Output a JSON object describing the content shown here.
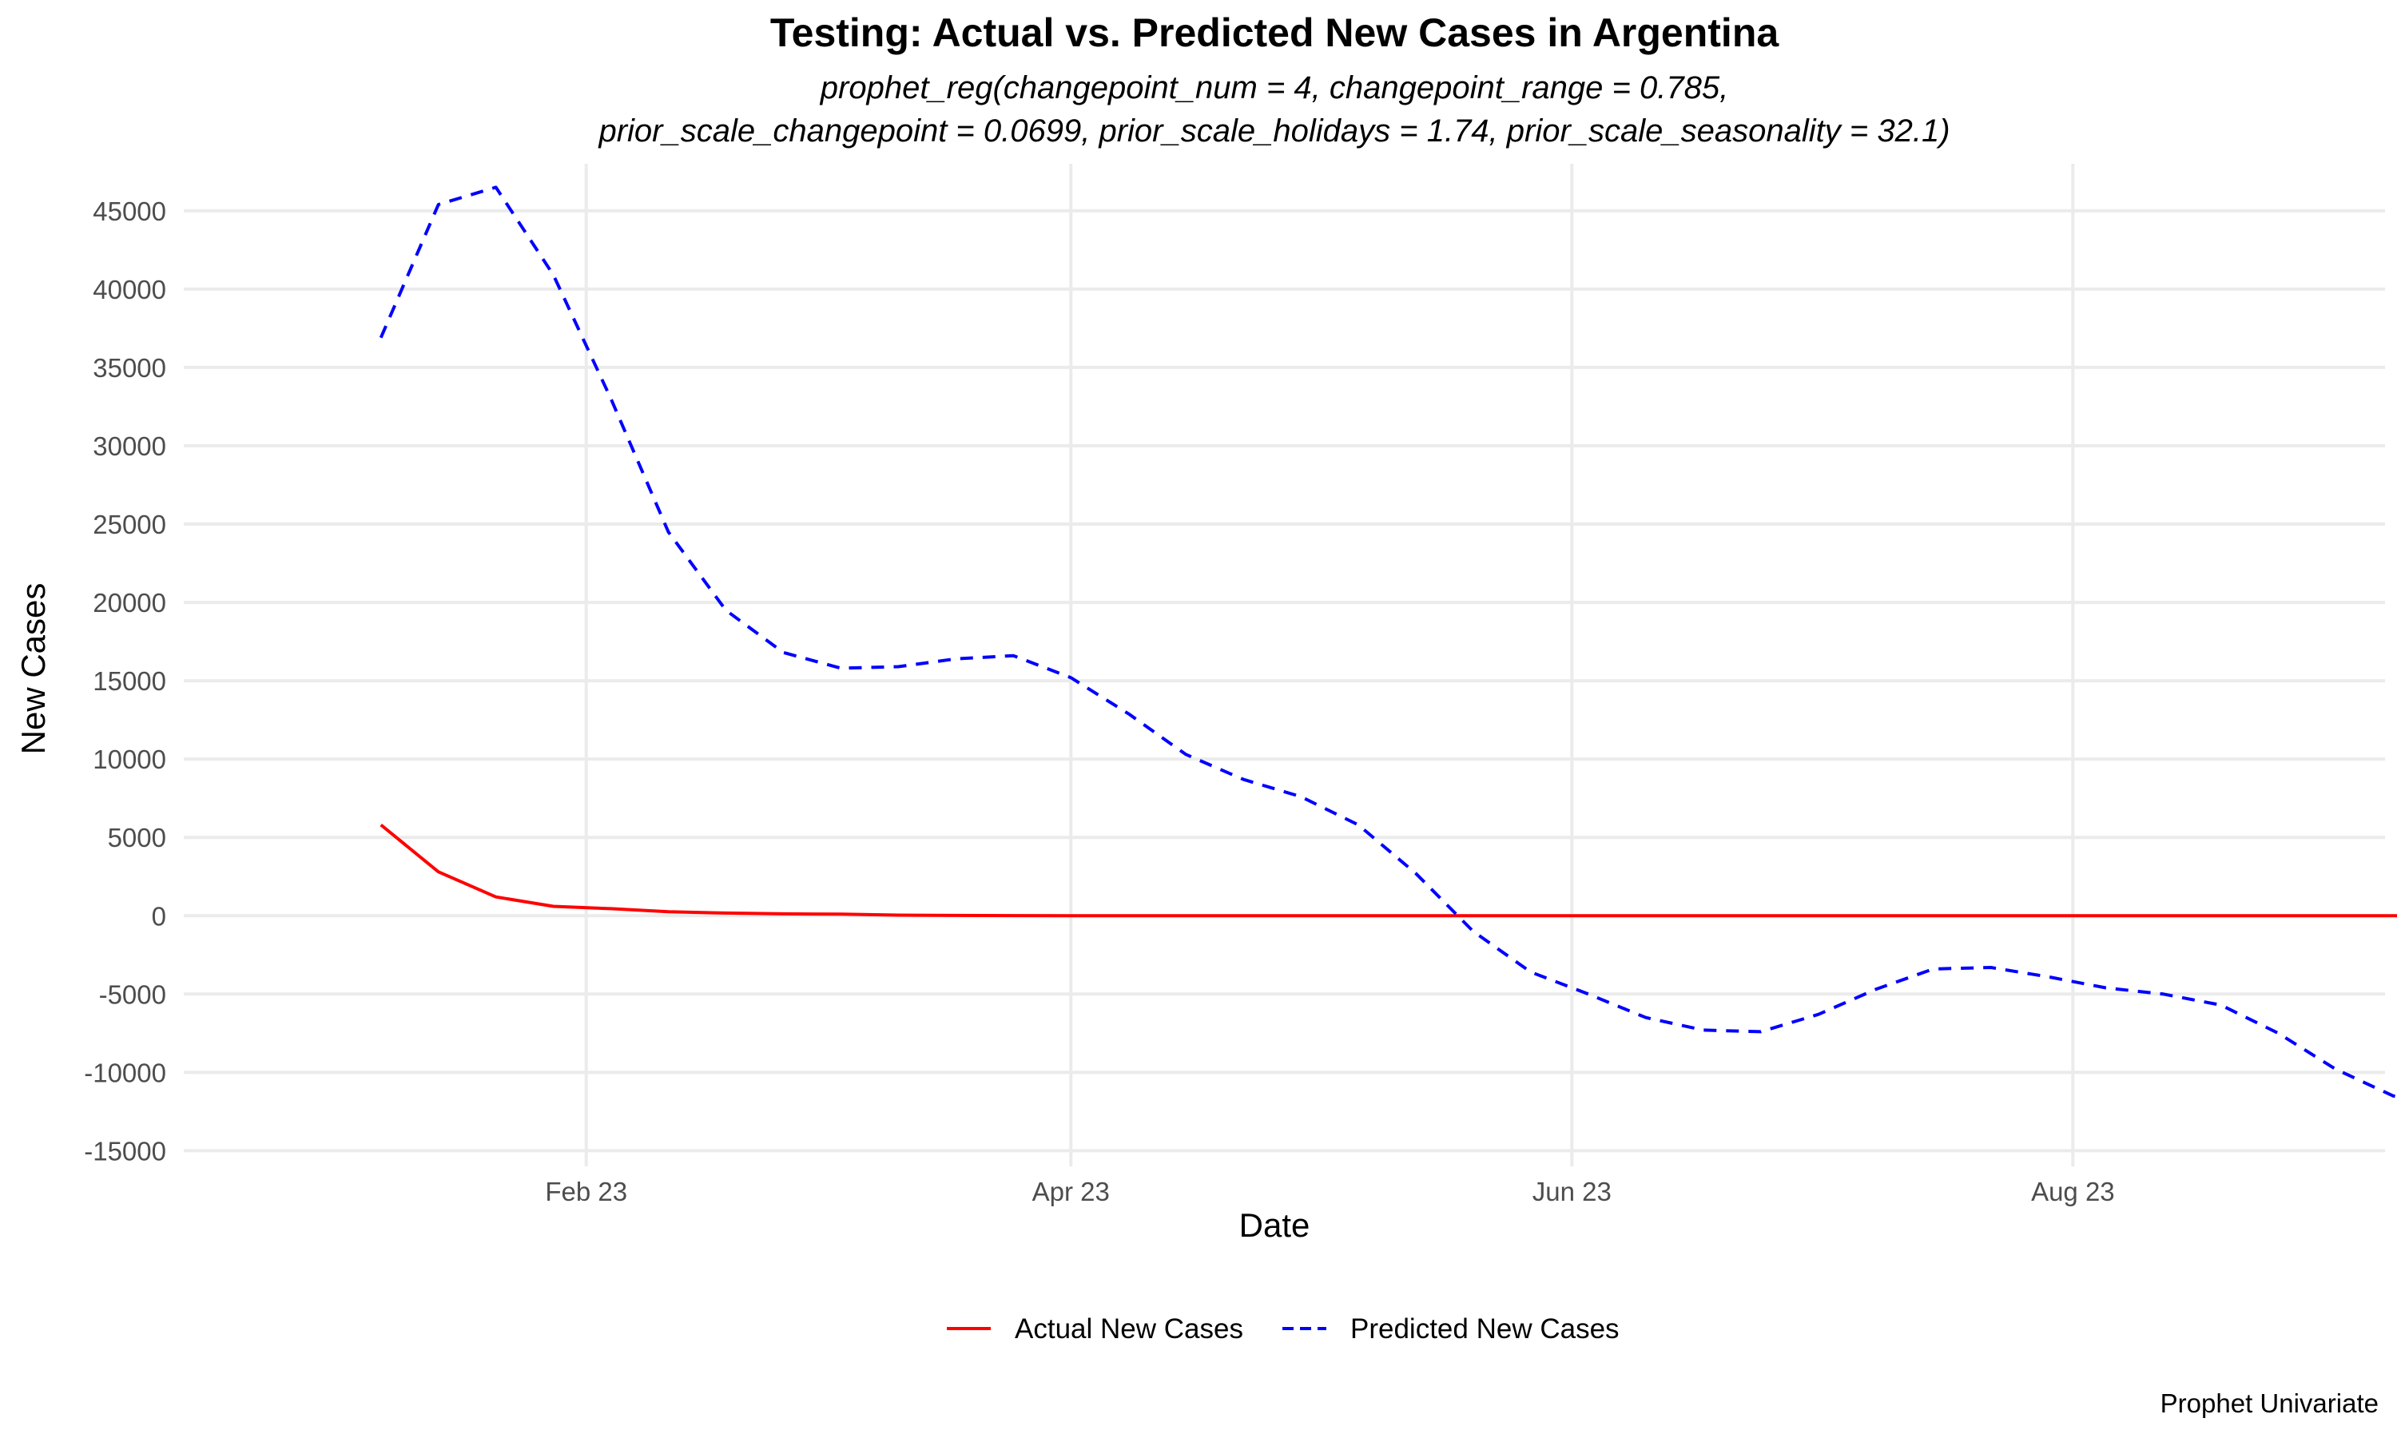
{
  "chart_data": {
    "type": "line",
    "title": "Testing: Actual vs. Predicted New Cases in Argentina",
    "subtitle_lines": [
      "prophet_reg(changepoint_num = 4, changepoint_range = 0.785,",
      "prior_scale_changepoint = 0.0699, prior_scale_holidays = 1.74, prior_scale_seasonality = 32.1)"
    ],
    "xlabel": "Date",
    "ylabel": "New Cases",
    "caption": "Prophet Univariate",
    "x_axis": {
      "type": "date",
      "range": [
        "2023-01-05",
        "2023-09-30"
      ],
      "ticks": [
        {
          "date": "2023-02-23",
          "label": "Feb 23"
        },
        {
          "date": "2023-04-23",
          "label": "Apr 23"
        },
        {
          "date": "2023-06-23",
          "label": "Jun 23"
        },
        {
          "date": "2023-08-23",
          "label": "Aug 23"
        }
      ]
    },
    "y_axis": {
      "range": [
        -16000,
        48000
      ],
      "ticks": [
        -15000,
        -10000,
        -5000,
        0,
        5000,
        10000,
        15000,
        20000,
        25000,
        30000,
        35000,
        40000,
        45000
      ]
    },
    "grid": true,
    "legend_position": "bottom",
    "series": [
      {
        "name": "Actual New Cases",
        "color": "#ff0000",
        "dash": "solid",
        "points": [
          {
            "x": "2023-01-29",
            "y": 5800
          },
          {
            "x": "2023-02-05",
            "y": 2800
          },
          {
            "x": "2023-02-12",
            "y": 1200
          },
          {
            "x": "2023-02-19",
            "y": 600
          },
          {
            "x": "2023-02-26",
            "y": 450
          },
          {
            "x": "2023-03-05",
            "y": 250
          },
          {
            "x": "2023-03-12",
            "y": 170
          },
          {
            "x": "2023-03-19",
            "y": 120
          },
          {
            "x": "2023-03-26",
            "y": 100
          },
          {
            "x": "2023-04-02",
            "y": 40
          },
          {
            "x": "2023-04-09",
            "y": 20
          },
          {
            "x": "2023-04-16",
            "y": 10
          },
          {
            "x": "2023-04-23",
            "y": 5
          },
          {
            "x": "2023-05-07",
            "y": 0
          },
          {
            "x": "2023-06-04",
            "y": 0
          },
          {
            "x": "2023-07-02",
            "y": 0
          },
          {
            "x": "2023-07-30",
            "y": 0
          },
          {
            "x": "2023-08-27",
            "y": 0
          },
          {
            "x": "2023-09-24",
            "y": 0
          },
          {
            "x": "2023-10-08",
            "y": 0
          }
        ]
      },
      {
        "name": "Predicted New Cases",
        "color": "#0000ff",
        "dash": "dashed",
        "points": [
          {
            "x": "2023-01-29",
            "y": 36900
          },
          {
            "x": "2023-02-05",
            "y": 45400
          },
          {
            "x": "2023-02-12",
            "y": 46500
          },
          {
            "x": "2023-02-19",
            "y": 40900
          },
          {
            "x": "2023-02-26",
            "y": 33000
          },
          {
            "x": "2023-03-05",
            "y": 24500
          },
          {
            "x": "2023-03-12",
            "y": 19500
          },
          {
            "x": "2023-03-19",
            "y": 16800
          },
          {
            "x": "2023-03-26",
            "y": 15800
          },
          {
            "x": "2023-04-02",
            "y": 15900
          },
          {
            "x": "2023-04-09",
            "y": 16400
          },
          {
            "x": "2023-04-16",
            "y": 16600
          },
          {
            "x": "2023-04-23",
            "y": 15200
          },
          {
            "x": "2023-04-30",
            "y": 12900
          },
          {
            "x": "2023-05-07",
            "y": 10300
          },
          {
            "x": "2023-05-14",
            "y": 8700
          },
          {
            "x": "2023-05-21",
            "y": 7600
          },
          {
            "x": "2023-05-28",
            "y": 5800
          },
          {
            "x": "2023-06-04",
            "y": 2700
          },
          {
            "x": "2023-06-11",
            "y": -1000
          },
          {
            "x": "2023-06-18",
            "y": -3600
          },
          {
            "x": "2023-06-25",
            "y": -5000
          },
          {
            "x": "2023-07-02",
            "y": -6500
          },
          {
            "x": "2023-07-09",
            "y": -7300
          },
          {
            "x": "2023-07-16",
            "y": -7400
          },
          {
            "x": "2023-07-23",
            "y": -6300
          },
          {
            "x": "2023-07-30",
            "y": -4700
          },
          {
            "x": "2023-08-06",
            "y": -3400
          },
          {
            "x": "2023-08-13",
            "y": -3300
          },
          {
            "x": "2023-08-20",
            "y": -3900
          },
          {
            "x": "2023-08-27",
            "y": -4600
          },
          {
            "x": "2023-09-03",
            "y": -5000
          },
          {
            "x": "2023-09-10",
            "y": -5700
          },
          {
            "x": "2023-09-17",
            "y": -7500
          },
          {
            "x": "2023-09-24",
            "y": -9800
          },
          {
            "x": "2023-10-01",
            "y": -11500
          },
          {
            "x": "2023-10-08",
            "y": -12300
          }
        ]
      }
    ]
  }
}
